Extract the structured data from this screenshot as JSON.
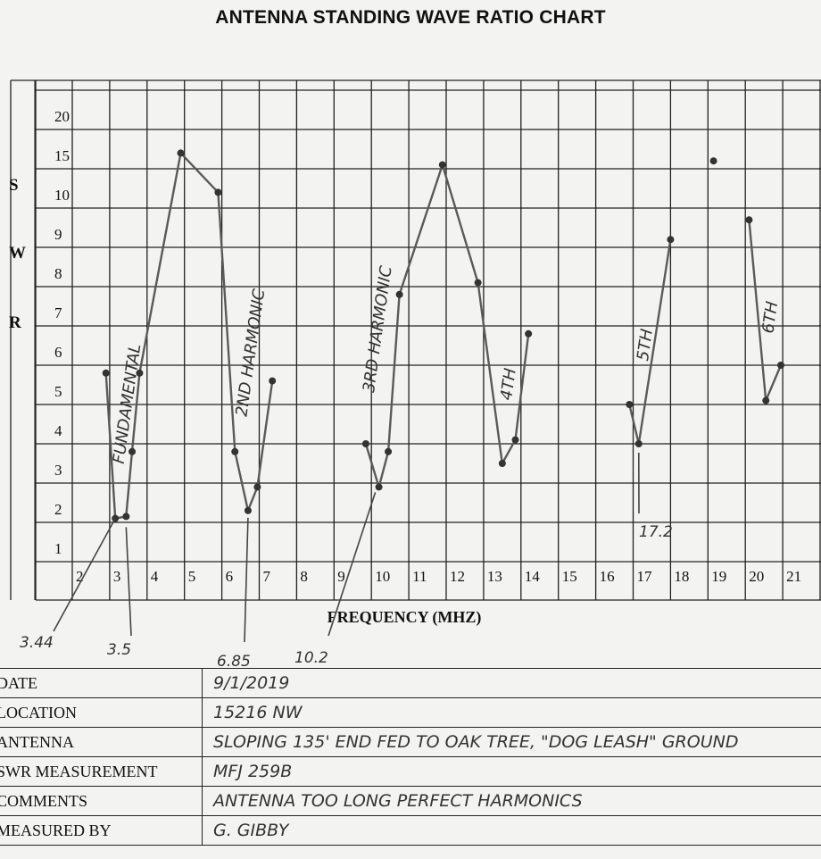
{
  "chart_data": {
    "type": "line",
    "title": "ANTENNA STANDING WAVE RATIO CHART",
    "ylabel": [
      "S",
      "W",
      "R"
    ],
    "xlabel": "FREQUENCY (MHZ)",
    "x_ticks": [
      "2",
      "3",
      "4",
      "5",
      "6",
      "7",
      "8",
      "9",
      "10",
      "11",
      "12",
      "13",
      "14",
      "15",
      "16",
      "17",
      "18",
      "19",
      "20",
      "21"
    ],
    "y_ticks": [
      "1",
      "2",
      "3",
      "4",
      "5",
      "6",
      "7",
      "8",
      "9",
      "10",
      "15",
      "20"
    ],
    "xlim": [
      1.3,
      21.0
    ],
    "grid": true,
    "series": [
      {
        "values": [
          [
            2.9,
            4.8
          ],
          [
            3.15,
            1.1
          ],
          [
            3.44,
            1.15
          ],
          [
            3.6,
            2.8
          ],
          [
            3.8,
            4.8
          ],
          [
            4.9,
            10.4
          ],
          [
            5.9,
            9.4
          ],
          [
            6.35,
            2.8
          ],
          [
            6.7,
            1.3
          ],
          [
            6.95,
            1.9
          ],
          [
            7.35,
            4.6
          ]
        ]
      },
      {
        "values": [
          [
            9.85,
            3.0
          ],
          [
            10.2,
            1.9
          ],
          [
            10.45,
            2.8
          ],
          [
            10.75,
            6.8
          ],
          [
            11.9,
            10.1
          ],
          [
            12.85,
            7.1
          ],
          [
            13.5,
            2.5
          ],
          [
            13.85,
            3.1
          ],
          [
            14.2,
            5.8
          ]
        ]
      },
      {
        "values": [
          [
            16.9,
            4.0
          ],
          [
            17.15,
            3.0
          ],
          [
            18.0,
            8.2
          ]
        ]
      },
      {
        "values": [
          [
            19.15,
            10.2
          ]
        ]
      },
      {
        "values": [
          [
            20.1,
            8.7
          ],
          [
            20.55,
            4.1
          ],
          [
            20.95,
            5.0
          ]
        ]
      }
    ],
    "annotations": [
      {
        "text": "FUNDAMENTAL",
        "x": 3.6,
        "y": 4.0
      },
      {
        "text": "2ND HARMONIC",
        "x": 6.9,
        "y": 5.3
      },
      {
        "text": "3RD HARMONIC",
        "x": 10.3,
        "y": 5.9
      },
      {
        "text": "4TH",
        "x": 13.8,
        "y": 4.5
      },
      {
        "text": "5TH",
        "x": 17.45,
        "y": 5.5
      },
      {
        "text": "6TH",
        "x": 20.8,
        "y": 6.2
      }
    ],
    "callouts": [
      "3.44",
      "3.5",
      "6.85",
      "10.2",
      "17.2"
    ]
  },
  "info": [
    {
      "label": "DATE",
      "value": "9/1/2019"
    },
    {
      "label": "LOCATION",
      "value": "15216 NW"
    },
    {
      "label": "ANTENNA",
      "value": "SLOPING 135' END FED TO OAK TREE, \"DOG LEASH\" GROUND"
    },
    {
      "label": "SWR MEASUREMENT",
      "value": "MFJ 259B"
    },
    {
      "label": "COMMENTS",
      "value": "ANTENNA TOO LONG  PERFECT HARMONICS"
    },
    {
      "label": "MEASURED BY",
      "value": "G. GIBBY"
    }
  ]
}
